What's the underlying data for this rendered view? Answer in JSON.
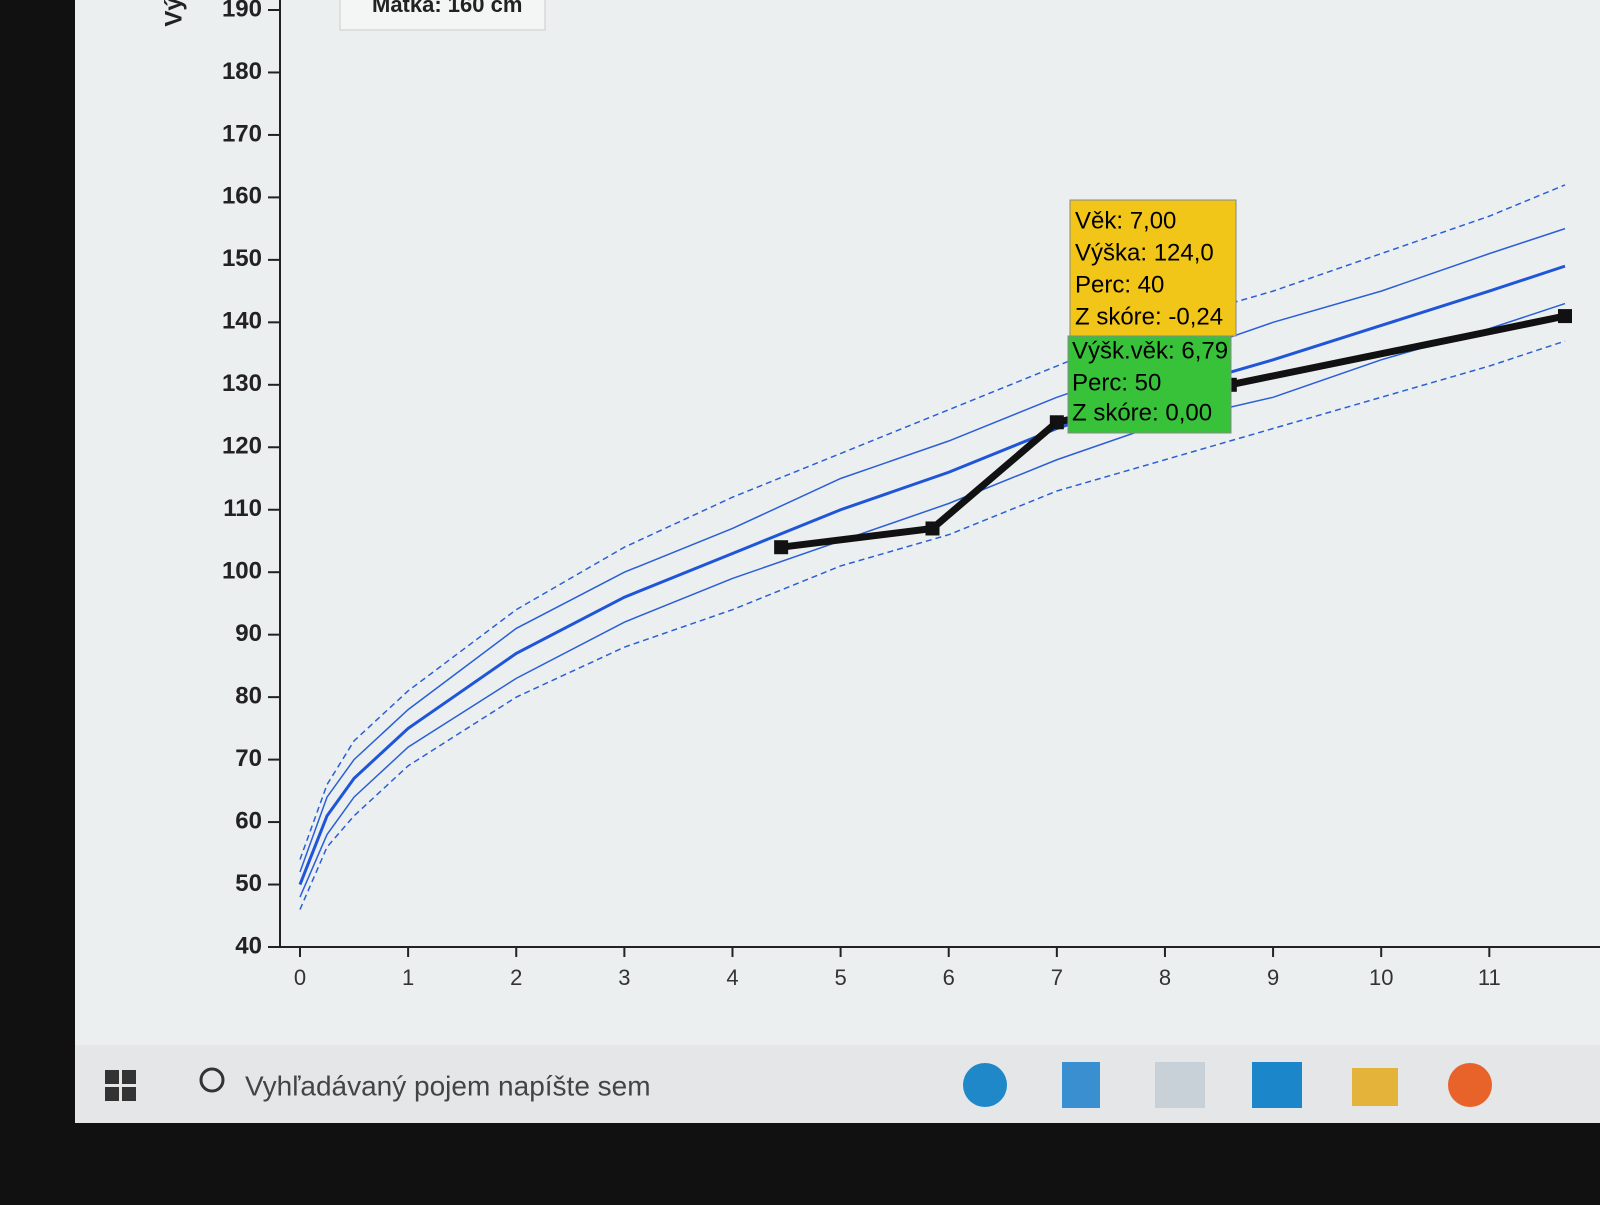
{
  "chart_data": {
    "type": "line",
    "y_label": "Vý",
    "legend_fragment": "Matka: 160 cm",
    "xlim": [
      0,
      11.7
    ],
    "ylim": [
      40,
      190
    ],
    "xticks": [
      0,
      1,
      2,
      3,
      4,
      5,
      6,
      7,
      8,
      9,
      10,
      11
    ],
    "yticks": [
      40,
      50,
      60,
      70,
      80,
      90,
      100,
      110,
      120,
      130,
      140,
      150,
      160,
      170,
      180,
      190
    ],
    "series": [
      {
        "color": "#2a5fd6",
        "dash": true,
        "width": 1.5,
        "x": [
          0,
          0.25,
          0.5,
          1,
          2,
          3,
          4,
          5,
          6,
          7,
          8,
          9,
          10,
          11,
          11.7
        ],
        "values": [
          54,
          66,
          73,
          81,
          94,
          104,
          112,
          119,
          126,
          133,
          140,
          145,
          151,
          157,
          162
        ]
      },
      {
        "color": "#2a5fd6",
        "dash": false,
        "width": 1.5,
        "x": [
          0,
          0.25,
          0.5,
          1,
          2,
          3,
          4,
          5,
          6,
          7,
          8,
          9,
          10,
          11,
          11.7
        ],
        "values": [
          52,
          64,
          70,
          78,
          91,
          100,
          107,
          115,
          121,
          128,
          134,
          140,
          145,
          151,
          155
        ]
      },
      {
        "color": "#1f56d8",
        "dash": false,
        "width": 3,
        "x": [
          0,
          0.25,
          0.5,
          1,
          2,
          3,
          4,
          5,
          6,
          7,
          8,
          9,
          10,
          11,
          11.7
        ],
        "values": [
          50,
          61,
          67,
          75,
          87,
          96,
          103,
          110,
          116,
          123,
          129,
          134,
          139.5,
          145,
          149
        ]
      },
      {
        "color": "#2a5fd6",
        "dash": false,
        "width": 1.5,
        "x": [
          0,
          0.25,
          0.5,
          1,
          2,
          3,
          4,
          5,
          6,
          7,
          8,
          9,
          10,
          11,
          11.7
        ],
        "values": [
          48,
          58,
          64,
          72,
          83,
          92,
          99,
          105,
          111,
          118,
          124,
          128,
          134,
          139,
          143
        ]
      },
      {
        "color": "#2a5fd6",
        "dash": true,
        "width": 1.5,
        "x": [
          0,
          0.25,
          0.5,
          1,
          2,
          3,
          4,
          5,
          6,
          7,
          8,
          9,
          10,
          11,
          11.7
        ],
        "values": [
          46,
          56,
          61,
          69,
          80,
          88,
          94,
          101,
          106,
          113,
          118,
          123,
          128,
          133,
          137
        ]
      },
      {
        "color": "#111111",
        "dash": false,
        "width": 7,
        "markers": true,
        "x": [
          4.45,
          5.85,
          7,
          8.6,
          11.7
        ],
        "values": [
          104,
          107,
          124,
          130,
          141
        ]
      }
    ],
    "tooltip": {
      "yellow": [
        "Věk: 7,00",
        "Výška: 124,0",
        "Perc: 40",
        "Z skóre: -0,24"
      ],
      "green": [
        "Výšk.věk: 6,79",
        "Perc: 50",
        "Z skóre: 0,00"
      ]
    }
  },
  "taskbar": {
    "search": "Vyhľadávaný pojem napíšte sem"
  }
}
